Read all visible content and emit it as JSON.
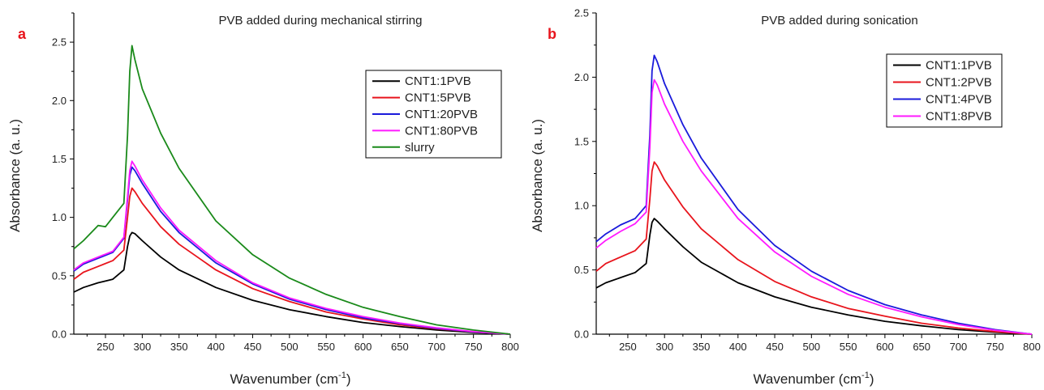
{
  "chart_data": [
    {
      "type": "line",
      "panel_label": "a",
      "title": "PVB added during mechanical stirring",
      "xlabel": "Wavenumber (cm",
      "xlabel_sup": "-1",
      "xlabel_close": ")",
      "ylabel": "Absorbance (a. u.)",
      "xlim": [
        207,
        800
      ],
      "ylim": [
        0,
        2.75
      ],
      "xticks": [
        "250",
        "300",
        "350",
        "400",
        "450",
        "500",
        "550",
        "600",
        "650",
        "700",
        "750",
        "800"
      ],
      "yticks": [
        "0.0",
        "0.5",
        "1.0",
        "1.5",
        "2.0",
        "2.5"
      ],
      "legend_position": "top-right",
      "series": [
        {
          "name": "CNT1:1PVB",
          "color": "#000000",
          "x": [
            207,
            220,
            240,
            260,
            275,
            280,
            283,
            286,
            290,
            300,
            325,
            350,
            400,
            450,
            500,
            550,
            600,
            650,
            700,
            750,
            800
          ],
          "y": [
            0.36,
            0.4,
            0.44,
            0.47,
            0.55,
            0.75,
            0.84,
            0.87,
            0.86,
            0.8,
            0.66,
            0.55,
            0.4,
            0.29,
            0.21,
            0.15,
            0.1,
            0.065,
            0.035,
            0.015,
            0.0
          ]
        },
        {
          "name": "CNT1:5PVB",
          "color": "#e8141c",
          "x": [
            207,
            220,
            240,
            260,
            275,
            280,
            283,
            286,
            290,
            300,
            325,
            350,
            400,
            450,
            500,
            550,
            600,
            650,
            700,
            750,
            800
          ],
          "y": [
            0.47,
            0.53,
            0.58,
            0.63,
            0.72,
            1.0,
            1.18,
            1.25,
            1.22,
            1.12,
            0.92,
            0.77,
            0.55,
            0.39,
            0.28,
            0.19,
            0.13,
            0.08,
            0.045,
            0.02,
            0.0
          ]
        },
        {
          "name": "CNT1:20PVB",
          "color": "#1a1adb",
          "x": [
            207,
            220,
            240,
            260,
            275,
            280,
            283,
            286,
            290,
            300,
            325,
            350,
            400,
            450,
            500,
            550,
            600,
            650,
            700,
            750,
            800
          ],
          "y": [
            0.54,
            0.6,
            0.65,
            0.7,
            0.82,
            1.15,
            1.36,
            1.43,
            1.4,
            1.29,
            1.05,
            0.87,
            0.61,
            0.43,
            0.3,
            0.21,
            0.14,
            0.09,
            0.05,
            0.02,
            0.0
          ]
        },
        {
          "name": "CNT1:80PVB",
          "color": "#ff1aff",
          "x": [
            207,
            220,
            240,
            260,
            275,
            280,
            283,
            286,
            290,
            300,
            325,
            350,
            400,
            450,
            500,
            550,
            600,
            650,
            700,
            750,
            800
          ],
          "y": [
            0.55,
            0.61,
            0.66,
            0.71,
            0.83,
            1.18,
            1.4,
            1.48,
            1.44,
            1.32,
            1.08,
            0.89,
            0.63,
            0.44,
            0.31,
            0.22,
            0.15,
            0.095,
            0.055,
            0.022,
            0.0
          ]
        },
        {
          "name": "slurry",
          "color": "#1a8a1a",
          "x": [
            207,
            220,
            240,
            250,
            260,
            275,
            280,
            283,
            286,
            290,
            300,
            325,
            350,
            400,
            450,
            500,
            550,
            600,
            650,
            700,
            750,
            800
          ],
          "y": [
            0.73,
            0.8,
            0.93,
            0.92,
            1.0,
            1.12,
            1.7,
            2.25,
            2.47,
            2.35,
            2.1,
            1.72,
            1.42,
            0.97,
            0.68,
            0.48,
            0.34,
            0.23,
            0.15,
            0.08,
            0.035,
            0.0
          ]
        }
      ]
    },
    {
      "type": "line",
      "panel_label": "b",
      "title": "PVB added during sonication",
      "xlabel": "Wavenumber (cm",
      "xlabel_sup": "-1",
      "xlabel_close": ")",
      "ylabel": "Absorbance (a. u.)",
      "xlim": [
        207,
        800
      ],
      "ylim": [
        0,
        2.5
      ],
      "xticks": [
        "250",
        "300",
        "350",
        "400",
        "450",
        "500",
        "550",
        "600",
        "650",
        "700",
        "750",
        "800"
      ],
      "yticks": [
        "0.0",
        "0.5",
        "1.0",
        "1.5",
        "2.0",
        "2.5"
      ],
      "legend_position": "top-right",
      "series": [
        {
          "name": "CNT1:1PVB",
          "color": "#000000",
          "x": [
            207,
            220,
            240,
            260,
            275,
            280,
            283,
            286,
            290,
            300,
            325,
            350,
            400,
            450,
            500,
            550,
            600,
            650,
            700,
            750,
            800
          ],
          "y": [
            0.36,
            0.4,
            0.44,
            0.48,
            0.55,
            0.77,
            0.87,
            0.9,
            0.88,
            0.82,
            0.68,
            0.56,
            0.4,
            0.29,
            0.21,
            0.15,
            0.1,
            0.065,
            0.035,
            0.015,
            0.0
          ]
        },
        {
          "name": "CNT1:2PVB",
          "color": "#e8141c",
          "x": [
            207,
            220,
            240,
            260,
            275,
            280,
            283,
            286,
            290,
            300,
            325,
            350,
            400,
            450,
            500,
            550,
            600,
            650,
            700,
            750,
            800
          ],
          "y": [
            0.49,
            0.55,
            0.6,
            0.65,
            0.74,
            1.05,
            1.27,
            1.34,
            1.31,
            1.2,
            0.99,
            0.82,
            0.58,
            0.41,
            0.29,
            0.2,
            0.14,
            0.085,
            0.048,
            0.02,
            0.0
          ]
        },
        {
          "name": "CNT1:4PVB",
          "color": "#1a1adb",
          "x": [
            207,
            220,
            240,
            260,
            275,
            280,
            283,
            286,
            290,
            300,
            325,
            350,
            400,
            450,
            500,
            550,
            600,
            650,
            700,
            750,
            800
          ],
          "y": [
            0.72,
            0.78,
            0.85,
            0.9,
            1.0,
            1.55,
            2.05,
            2.17,
            2.12,
            1.95,
            1.63,
            1.37,
            0.97,
            0.69,
            0.49,
            0.34,
            0.23,
            0.15,
            0.085,
            0.035,
            0.0
          ]
        },
        {
          "name": "CNT1:8PVB",
          "color": "#ff1aff",
          "x": [
            207,
            220,
            240,
            260,
            275,
            280,
            283,
            286,
            290,
            300,
            325,
            350,
            400,
            450,
            500,
            550,
            600,
            650,
            700,
            750,
            800
          ],
          "y": [
            0.67,
            0.73,
            0.8,
            0.86,
            0.95,
            1.45,
            1.88,
            1.98,
            1.94,
            1.79,
            1.5,
            1.27,
            0.9,
            0.64,
            0.45,
            0.31,
            0.21,
            0.135,
            0.075,
            0.03,
            0.0
          ]
        }
      ]
    }
  ]
}
